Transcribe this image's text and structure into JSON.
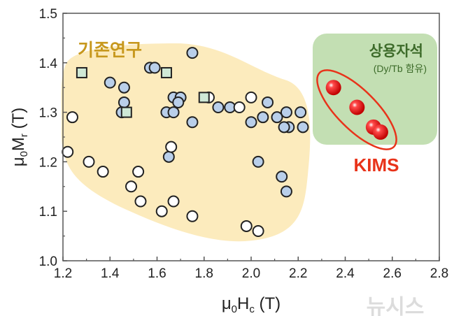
{
  "chart_data": {
    "type": "scatter",
    "xlabel": {
      "base": "μ",
      "sub1": "0",
      "mid": "H",
      "sub2": "c",
      "unit": " (T)"
    },
    "ylabel": {
      "base": "μ",
      "sub1": "0",
      "mid": "M",
      "sub2": "r",
      "unit": " (T)"
    },
    "xlim": [
      1.2,
      2.8
    ],
    "ylim": [
      1.0,
      1.5
    ],
    "xticks": [
      "1.2",
      "1.4",
      "1.6",
      "1.8",
      "2.0",
      "2.2",
      "2.4",
      "2.6",
      "2.8"
    ],
    "yticks": [
      "1.0",
      "1.1",
      "1.2",
      "1.3",
      "1.4",
      "1.5"
    ],
    "grid": false,
    "annotations": {
      "previous_studies": "기존연구",
      "commercial_magnets": "상용자석",
      "commercial_note": "(Dy/Tb 함유)",
      "kims": "KIMS",
      "watermark": "뉴시스"
    },
    "colors": {
      "blue": "#b9cfea",
      "white": "#ffffff",
      "square": "#cfe9d6",
      "red": "#e8100f",
      "blob": "#fcebbd",
      "green_box": "#c3dfb3",
      "label_gold": "#c7981d",
      "label_green": "#3d6b2a",
      "kims_red": "#e8331a"
    },
    "series": [
      {
        "marker": "circle-blue",
        "points": [
          [
            1.4,
            1.36
          ],
          [
            1.46,
            1.35
          ],
          [
            1.46,
            1.32
          ],
          [
            1.45,
            1.3
          ],
          [
            1.57,
            1.39
          ],
          [
            1.59,
            1.39
          ],
          [
            1.75,
            1.42
          ],
          [
            1.64,
            1.3
          ],
          [
            1.67,
            1.33
          ],
          [
            1.7,
            1.33
          ],
          [
            1.69,
            1.32
          ],
          [
            1.67,
            1.3
          ],
          [
            1.75,
            1.28
          ],
          [
            1.65,
            1.21
          ],
          [
            1.86,
            1.31
          ],
          [
            1.91,
            1.31
          ],
          [
            2.0,
            1.28
          ],
          [
            2.05,
            1.29
          ],
          [
            2.07,
            1.32
          ],
          [
            2.11,
            1.29
          ],
          [
            2.15,
            1.3
          ],
          [
            2.16,
            1.27
          ],
          [
            2.14,
            1.27
          ],
          [
            2.21,
            1.3
          ],
          [
            2.22,
            1.27
          ],
          [
            2.03,
            1.2
          ],
          [
            2.13,
            1.17
          ],
          [
            2.15,
            1.14
          ]
        ]
      },
      {
        "marker": "circle-white",
        "points": [
          [
            1.24,
            1.29
          ],
          [
            1.22,
            1.22
          ],
          [
            1.31,
            1.2
          ],
          [
            1.37,
            1.18
          ],
          [
            1.49,
            1.15
          ],
          [
            1.52,
            1.18
          ],
          [
            1.53,
            1.12
          ],
          [
            1.62,
            1.1
          ],
          [
            1.67,
            1.12
          ],
          [
            1.66,
            1.23
          ],
          [
            1.75,
            1.09
          ],
          [
            1.82,
            1.33
          ],
          [
            1.95,
            1.31
          ],
          [
            2.0,
            1.33
          ],
          [
            1.98,
            1.07
          ],
          [
            2.03,
            1.06
          ]
        ]
      },
      {
        "marker": "square-green",
        "points": [
          [
            1.28,
            1.38
          ],
          [
            1.64,
            1.38
          ],
          [
            1.47,
            1.3
          ],
          [
            1.8,
            1.33
          ]
        ]
      },
      {
        "marker": "sphere-red",
        "points": [
          [
            2.35,
            1.35
          ],
          [
            2.45,
            1.31
          ],
          [
            2.52,
            1.27
          ],
          [
            2.55,
            1.26
          ]
        ]
      }
    ]
  }
}
